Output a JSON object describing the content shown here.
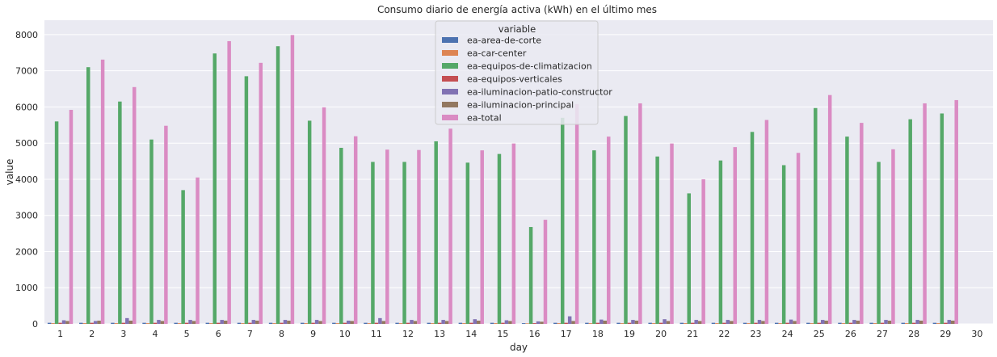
{
  "chart_data": {
    "type": "bar",
    "title": "Consumo diario de energía activa (kWh) en el último mes",
    "xlabel": "day",
    "ylabel": "value",
    "ylim": [
      0,
      8400
    ],
    "yticks": [
      0,
      1000,
      2000,
      3000,
      4000,
      5000,
      6000,
      7000,
      8000
    ],
    "grid": true,
    "legend_title": "variable",
    "legend_position": "top-center",
    "categories": [
      "1",
      "2",
      "3",
      "4",
      "5",
      "6",
      "7",
      "8",
      "9",
      "10",
      "11",
      "12",
      "13",
      "14",
      "15",
      "16",
      "17",
      "18",
      "19",
      "20",
      "21",
      "22",
      "23",
      "24",
      "25",
      "26",
      "27",
      "28",
      "29",
      "30"
    ],
    "series": [
      {
        "name": "ea-area-de-corte",
        "color": "#4c72b0",
        "values": [
          30,
          30,
          30,
          30,
          30,
          30,
          30,
          30,
          30,
          30,
          30,
          30,
          30,
          30,
          30,
          20,
          30,
          30,
          30,
          30,
          30,
          30,
          30,
          30,
          30,
          30,
          30,
          30,
          30,
          0
        ]
      },
      {
        "name": "ea-car-center",
        "color": "#dd8452",
        "values": [
          20,
          20,
          20,
          20,
          20,
          20,
          20,
          20,
          20,
          20,
          20,
          20,
          20,
          20,
          20,
          15,
          20,
          20,
          20,
          20,
          20,
          20,
          20,
          20,
          20,
          20,
          20,
          20,
          20,
          0
        ]
      },
      {
        "name": "ea-equipos-de-climatizacion",
        "color": "#55a868",
        "values": [
          5600,
          7100,
          6150,
          5100,
          3700,
          7480,
          6850,
          7680,
          5620,
          4870,
          4480,
          4480,
          5050,
          4460,
          4700,
          2680,
          5700,
          4800,
          5750,
          4630,
          3610,
          4520,
          5310,
          4390,
          5970,
          5180,
          4480,
          5660,
          5820,
          0
        ]
      },
      {
        "name": "ea-equipos-verticales",
        "color": "#c44e52",
        "values": [
          30,
          30,
          30,
          30,
          30,
          30,
          30,
          30,
          30,
          30,
          30,
          30,
          30,
          30,
          30,
          20,
          30,
          30,
          30,
          30,
          30,
          30,
          30,
          30,
          30,
          30,
          30,
          30,
          30,
          0
        ]
      },
      {
        "name": "ea-iluminacion-patio-constructor",
        "color": "#8172b3",
        "values": [
          100,
          80,
          160,
          110,
          110,
          110,
          110,
          110,
          110,
          90,
          160,
          110,
          110,
          130,
          100,
          70,
          210,
          120,
          110,
          130,
          110,
          110,
          110,
          120,
          110,
          110,
          110,
          110,
          110,
          0
        ]
      },
      {
        "name": "ea-iluminacion-principal",
        "color": "#937860",
        "values": [
          80,
          90,
          90,
          80,
          80,
          90,
          90,
          90,
          80,
          80,
          80,
          80,
          80,
          90,
          80,
          60,
          80,
          90,
          90,
          80,
          80,
          80,
          80,
          80,
          90,
          90,
          90,
          90,
          90,
          0
        ]
      },
      {
        "name": "ea-total",
        "color": "#da8bc3",
        "values": [
          5920,
          7310,
          6550,
          5480,
          4050,
          7820,
          7220,
          7990,
          5990,
          5190,
          4820,
          4810,
          5400,
          4800,
          4990,
          2880,
          6080,
          5180,
          6100,
          4990,
          4000,
          4890,
          5640,
          4730,
          6330,
          5560,
          4830,
          6100,
          6190,
          0
        ]
      }
    ]
  }
}
